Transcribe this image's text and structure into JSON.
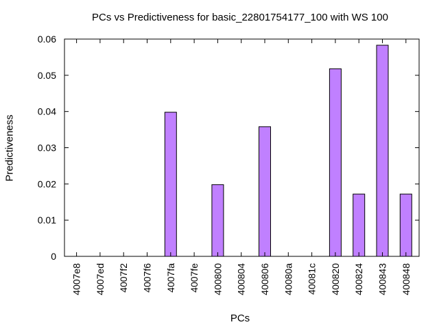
{
  "chart_data": {
    "type": "bar",
    "title": "PCs vs Predictiveness for basic_22801754177_100 with WS 100",
    "xlabel": "PCs",
    "ylabel": "Predictiveness",
    "categories": [
      "4007e8",
      "4007ed",
      "4007f2",
      "4007f6",
      "4007fa",
      "4007fe",
      "400800",
      "400804",
      "400806",
      "40080a",
      "40081c",
      "400820",
      "400824",
      "400843",
      "400848"
    ],
    "values": [
      0,
      0,
      0,
      0,
      0.0398,
      0,
      0.0198,
      0,
      0.0358,
      0,
      0,
      0.0518,
      0.0172,
      0.0583,
      0.0172
    ],
    "yticks": [
      "0",
      "0.01",
      "0.02",
      "0.03",
      "0.04",
      "0.05",
      "0.06"
    ],
    "ylim": [
      0,
      0.06
    ],
    "grid": false,
    "bar_color": "#c080ff"
  }
}
